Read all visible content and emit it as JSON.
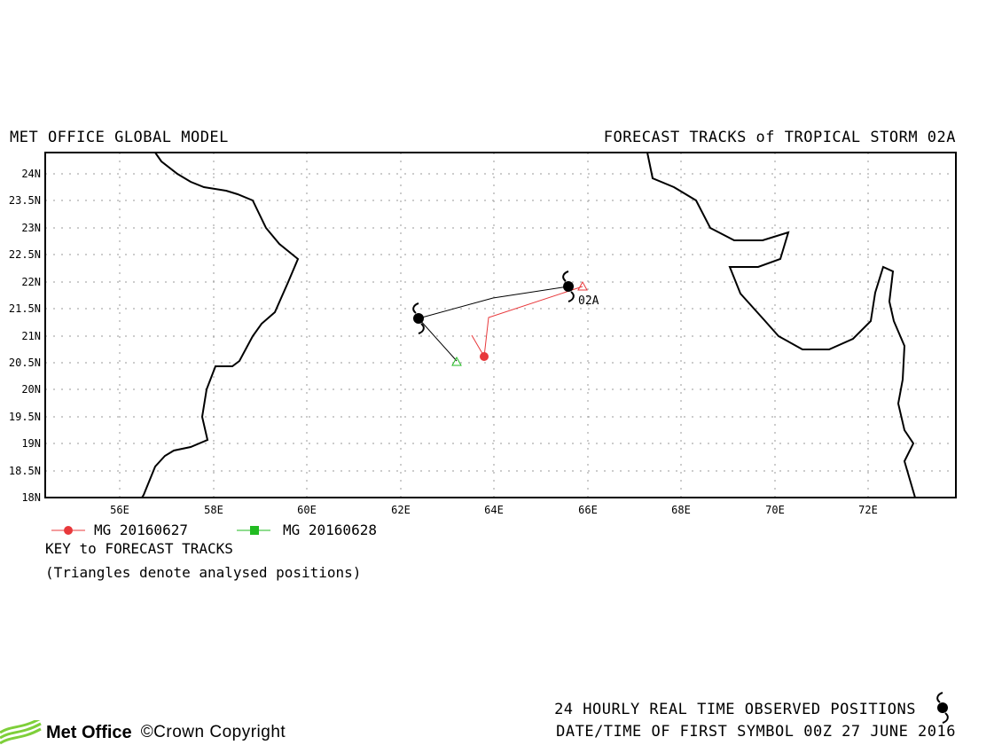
{
  "header": {
    "left_title": "MET OFFICE GLOBAL MODEL",
    "right_title": "FORECAST TRACKS of TROPICAL STORM 02A"
  },
  "map": {
    "lon_ticks": [
      "56E",
      "58E",
      "60E",
      "62E",
      "64E",
      "66E",
      "68E",
      "70E",
      "72E"
    ],
    "lat_ticks": [
      "24N",
      "23.5N",
      "23N",
      "22.5N",
      "22N",
      "21.5N",
      "21N",
      "20.5N",
      "20N",
      "19.5N",
      "19N",
      "18.5N",
      "18N"
    ],
    "storm_label": "02A",
    "colors": {
      "coast": "#000000",
      "grid": "#9a9a9a",
      "mg0627": "#e8383b",
      "mg0628": "#22bb22",
      "observed": "#000000"
    }
  },
  "legend": {
    "series": [
      {
        "label": "MG 20160627",
        "marker": "circle",
        "color": "#e8383b"
      },
      {
        "label": "MG 20160628",
        "marker": "square",
        "color": "#22bb22"
      }
    ],
    "key_title": "KEY to FORECAST TRACKS",
    "note": "(Triangles denote analysed positions)"
  },
  "footer": {
    "observed_line": "24 HOURLY REAL TIME OBSERVED POSITIONS",
    "date_line": "DATE/TIME OF FIRST SYMBOL 00Z 27 JUNE 2016",
    "logo_text": "Met Office",
    "copyright": "©Crown Copyright"
  }
}
